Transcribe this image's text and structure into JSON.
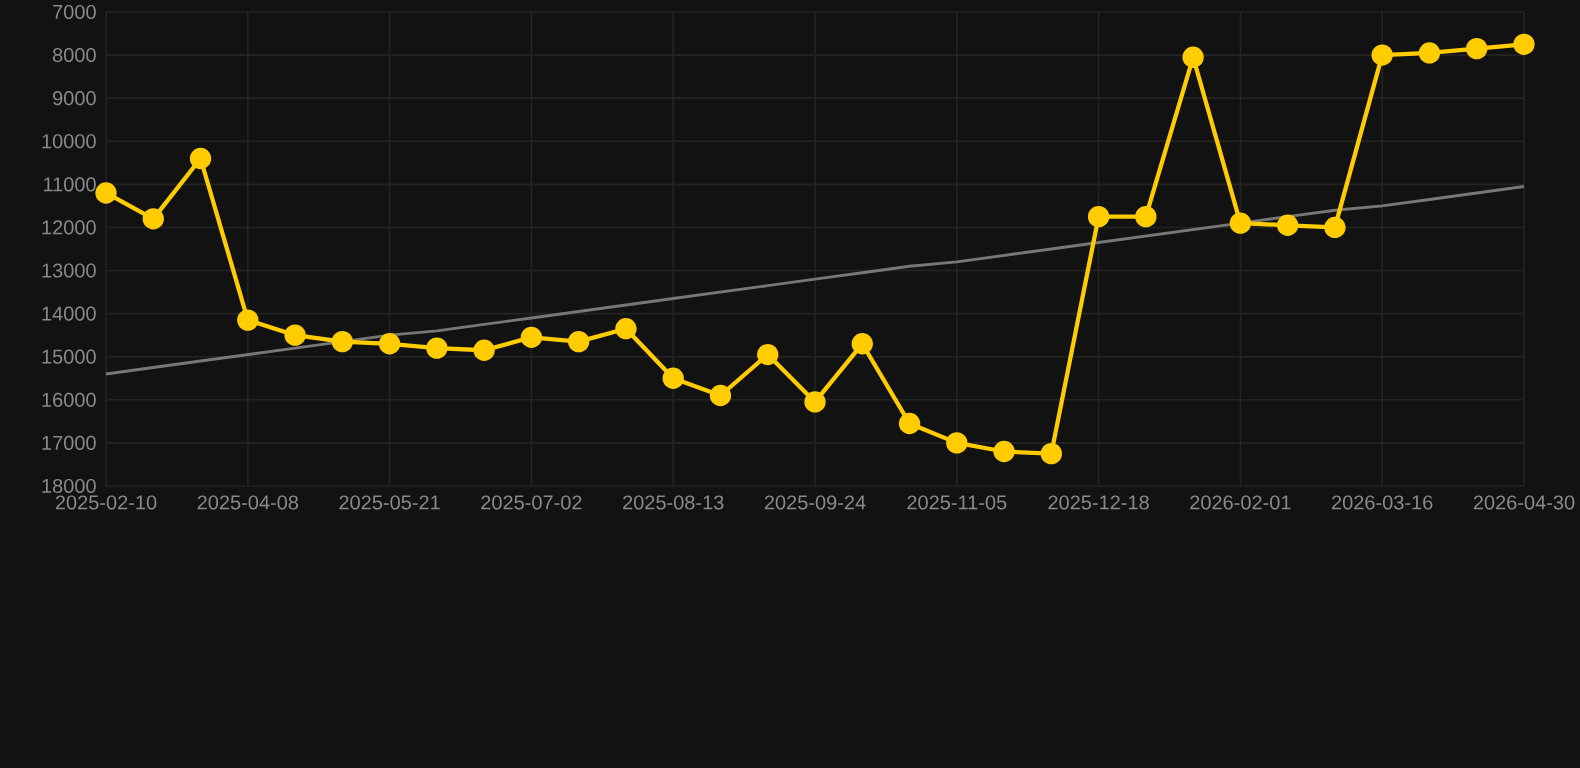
{
  "chart_data": {
    "type": "line",
    "categories": [
      "2025-02-10",
      null,
      null,
      "2025-04-08",
      null,
      null,
      "2025-05-21",
      null,
      null,
      "2025-07-02",
      null,
      null,
      "2025-08-13",
      null,
      null,
      "2025-09-24",
      null,
      null,
      "2025-11-05",
      null,
      null,
      "2025-12-18",
      null,
      null,
      "2026-02-01",
      null,
      null,
      "2026-03-16",
      null,
      null,
      "2026-04-30"
    ],
    "series": [
      {
        "color": "#ffcc00",
        "marker": "circle",
        "values": [
          11200,
          11800,
          10400,
          14150,
          14500,
          14650,
          14700,
          14800,
          14850,
          14550,
          14650,
          14350,
          15500,
          15900,
          14950,
          16050,
          14700,
          16550,
          17000,
          17200,
          17250,
          11750,
          11750,
          8050,
          11900,
          11950,
          12000,
          8000,
          7950,
          7850,
          7750
        ]
      },
      {
        "type": "line",
        "color": "#777777",
        "marker": "none",
        "values": [
          15400,
          15250,
          15100,
          14950,
          14800,
          14650,
          14500,
          14400,
          14250,
          14100,
          13950,
          13800,
          13650,
          13500,
          13350,
          13200,
          13050,
          12900,
          12800,
          12650,
          12500,
          12350,
          12200,
          12050,
          11900,
          11750,
          11600,
          11500,
          11350,
          11200,
          11050
        ]
      }
    ],
    "ylim": [
      18000,
      7000
    ],
    "yticks": [
      7000,
      8000,
      9000,
      10000,
      11000,
      12000,
      13000,
      14000,
      15000,
      16000,
      17000,
      18000
    ],
    "grid": true,
    "line_style": "solid"
  }
}
